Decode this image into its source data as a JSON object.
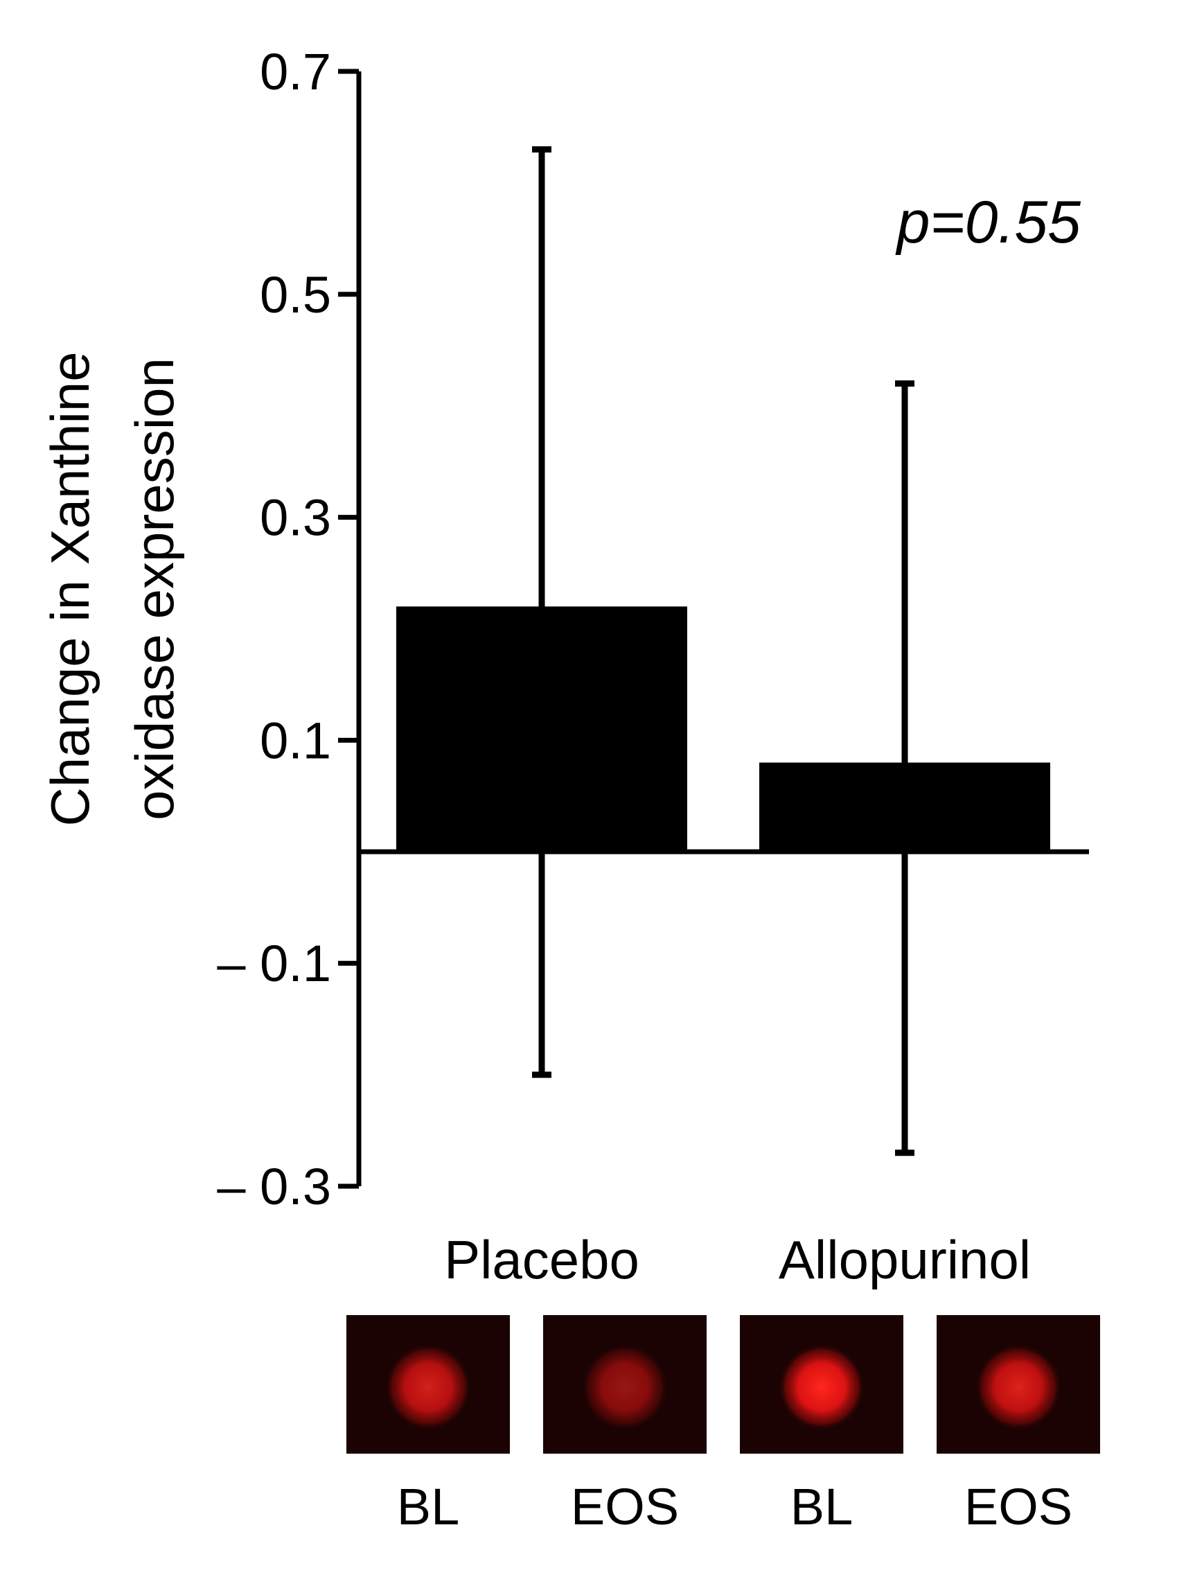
{
  "chart_data": {
    "type": "bar",
    "categories": [
      "Placebo",
      "Allopurinol"
    ],
    "series": [
      {
        "values": [
          0.22,
          0.08
        ],
        "error_upper": [
          0.63,
          0.42
        ],
        "error_lower": [
          -0.2,
          -0.27
        ]
      }
    ],
    "ylabel_lines": [
      "Change in Xanthine",
      "oxidase expression"
    ],
    "yticks": [
      0.7,
      0.5,
      0.3,
      0.1,
      -0.1,
      -0.3
    ],
    "ytick_labels": [
      "0.7",
      "0.5",
      "0.3",
      "0.1",
      "– 0.1",
      "– 0.3"
    ],
    "ylim": [
      -0.3,
      0.7
    ],
    "annotation": "p=0.55",
    "colors": {
      "bar": "#000000",
      "axis": "#000000",
      "image_bg": "#1c0303",
      "signal": "#ff1a1a"
    }
  },
  "images": [
    {
      "label": "BL",
      "group": "Placebo",
      "intensity": 0.8
    },
    {
      "label": "EOS",
      "group": "Placebo",
      "intensity": 0.55
    },
    {
      "label": "BL",
      "group": "Allopurinol",
      "intensity": 1.0
    },
    {
      "label": "EOS",
      "group": "Allopurinol",
      "intensity": 0.85
    }
  ]
}
